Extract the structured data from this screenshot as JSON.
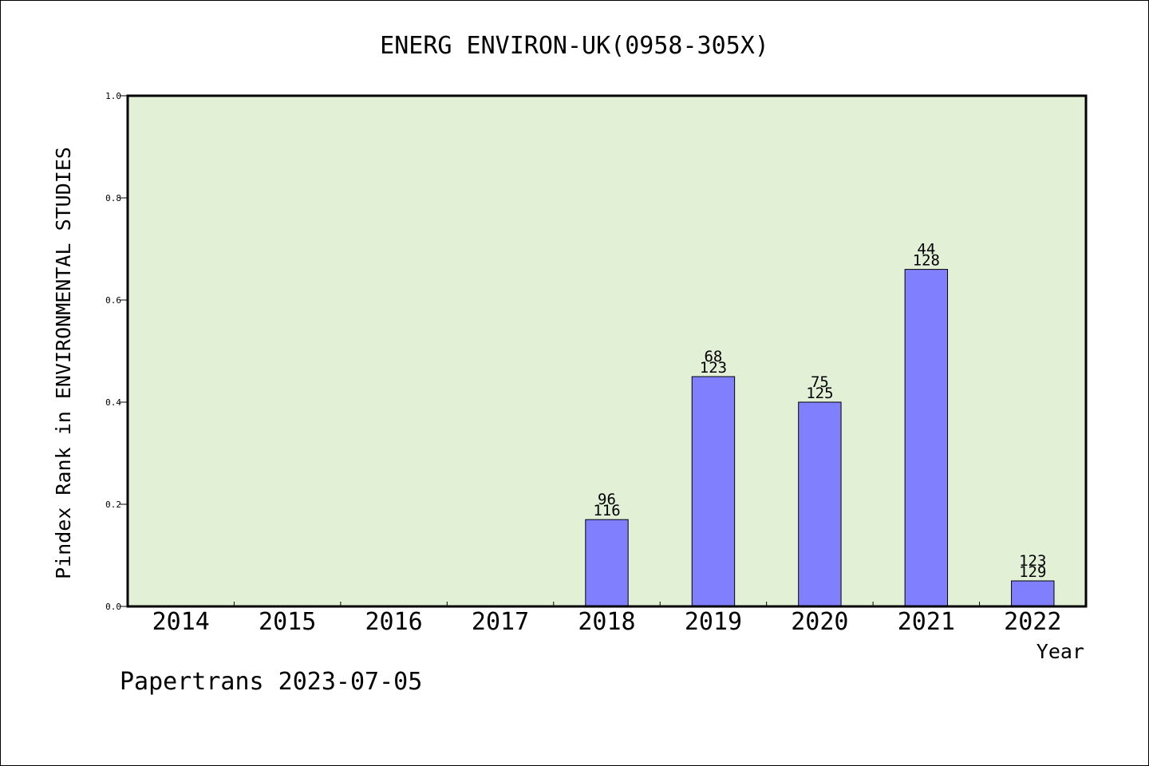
{
  "chart_data": {
    "type": "bar",
    "title": "ENERG ENVIRON-UK(0958-305X)",
    "xlabel": "Year",
    "ylabel": "Pindex Rank in ENVIRONMENTAL STUDIES",
    "ylim": [
      0,
      1.0
    ],
    "yticks": [
      "0.0",
      "0.2",
      "0.4",
      "0.6",
      "0.8",
      "1.0"
    ],
    "categories": [
      "2014",
      "2015",
      "2016",
      "2017",
      "2018",
      "2019",
      "2020",
      "2021",
      "2022"
    ],
    "values": [
      null,
      null,
      null,
      null,
      0.17,
      0.45,
      0.4,
      0.66,
      0.05
    ],
    "rank_labels": [
      "",
      "",
      "",
      "",
      "96",
      "68",
      "75",
      "44",
      "123"
    ],
    "total_labels": [
      "",
      "",
      "",
      "",
      "116",
      "123",
      "125",
      "128",
      "129"
    ],
    "grid": false,
    "colors": {
      "plot_background": "#e2f0d6",
      "bar_fill": "#8080ff",
      "bar_stroke": "#000000"
    }
  },
  "footer": "Papertrans 2023-07-05"
}
